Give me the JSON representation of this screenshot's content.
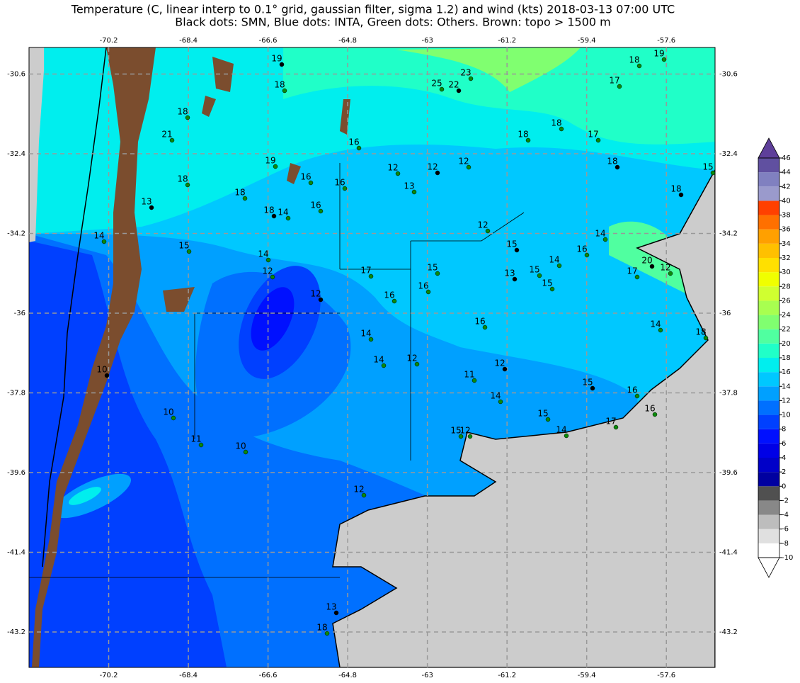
{
  "map_data": {
    "type": "contour-map",
    "title": "Temperature (C, linear interp to 0.1° grid, gaussian filter, sigma 1.2) and wind (kts) 2018-03-13 07:00 UTC",
    "subtitle": "Black dots: SMN, Blue dots: INTA, Green dots: Others. Brown: topo > 1500 m",
    "xlim": [
      -72.0,
      -56.5
    ],
    "ylim": [
      -44.0,
      -30.0
    ],
    "xticks": [
      -70.2,
      -68.4,
      -66.6,
      -64.8,
      -63.0,
      -61.2,
      -59.4,
      -57.6
    ],
    "yticks": [
      -30.6,
      -32.4,
      -34.2,
      -36.0,
      -37.8,
      -39.6,
      -41.4,
      -43.2
    ],
    "grid": true,
    "station_values": [
      19,
      18,
      18,
      21,
      18,
      13,
      14,
      15,
      14,
      12,
      12,
      14,
      14,
      12,
      11,
      12,
      14,
      15,
      14,
      17,
      15,
      16,
      16,
      14,
      18,
      10,
      10,
      11,
      10,
      12,
      13,
      18,
      16,
      16,
      15,
      13,
      15,
      15,
      14,
      12,
      15,
      16,
      15,
      12,
      23,
      22,
      25,
      16,
      12,
      13,
      12,
      12,
      18,
      18,
      17,
      18,
      17,
      18,
      19,
      15,
      18,
      14,
      16,
      17,
      12,
      20,
      17,
      16,
      16,
      16,
      18,
      14,
      18,
      19
    ]
  },
  "colorbar": {
    "ticks": [
      -10,
      -8,
      -6,
      -4,
      -2,
      0,
      2,
      4,
      6,
      8,
      10,
      12,
      14,
      16,
      18,
      20,
      22,
      24,
      26,
      28,
      30,
      32,
      34,
      36,
      38,
      40,
      42,
      44,
      46
    ],
    "colors": [
      "#ffffff",
      "#e0e0e0",
      "#bdbdbd",
      "#888888",
      "#505050",
      "#0000a0",
      "#0000c8",
      "#0000e6",
      "#0010ff",
      "#0040ff",
      "#0070ff",
      "#00a0ff",
      "#00c8ff",
      "#00eeee",
      "#20ffc8",
      "#50ffa0",
      "#80ff70",
      "#a8ff50",
      "#d0ff30",
      "#f0ff00",
      "#ffe000",
      "#ffc000",
      "#ffa000",
      "#ff7000",
      "#ff4000",
      "#9a9acc",
      "#8080c0",
      "#6050a0"
    ],
    "under_color": "#ffffff",
    "over_color": "#5e3f9a"
  }
}
